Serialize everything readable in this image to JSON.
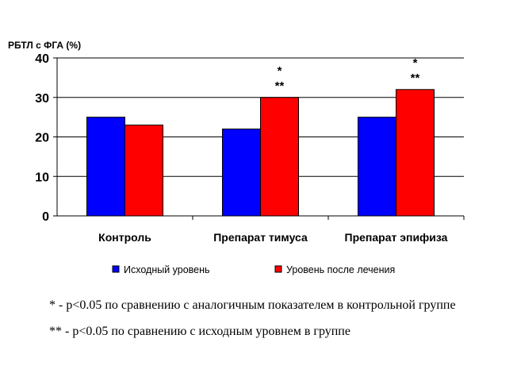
{
  "chart_data": {
    "type": "bar",
    "ylabel": "РБТЛ с ФГА (%)",
    "ylim": [
      0,
      40
    ],
    "yticks": [
      "0",
      "10",
      "20",
      "30",
      "40"
    ],
    "grid": true,
    "legend_position": "bottom",
    "categories": [
      "Контроль",
      "Препарат тимуса",
      "Препарат эпифиза"
    ],
    "series": [
      {
        "name": "Исходный уровень",
        "color": "#0000ff",
        "values": [
          25,
          22,
          25
        ]
      },
      {
        "name": "Уровень после лечения",
        "color": "#ff0000",
        "values": [
          23,
          30,
          32
        ]
      }
    ],
    "annotations": [
      {
        "category_index": 1,
        "series_index": 1,
        "lines": [
          "*",
          "**"
        ]
      },
      {
        "category_index": 2,
        "series_index": 1,
        "lines": [
          "*",
          "**"
        ]
      }
    ]
  },
  "footnotes": [
    "* - p<0.05 по сравнению с аналогичным показателем в контрольной группе",
    "** - p<0.05 по сравнению с исходным уровнем в группе"
  ]
}
